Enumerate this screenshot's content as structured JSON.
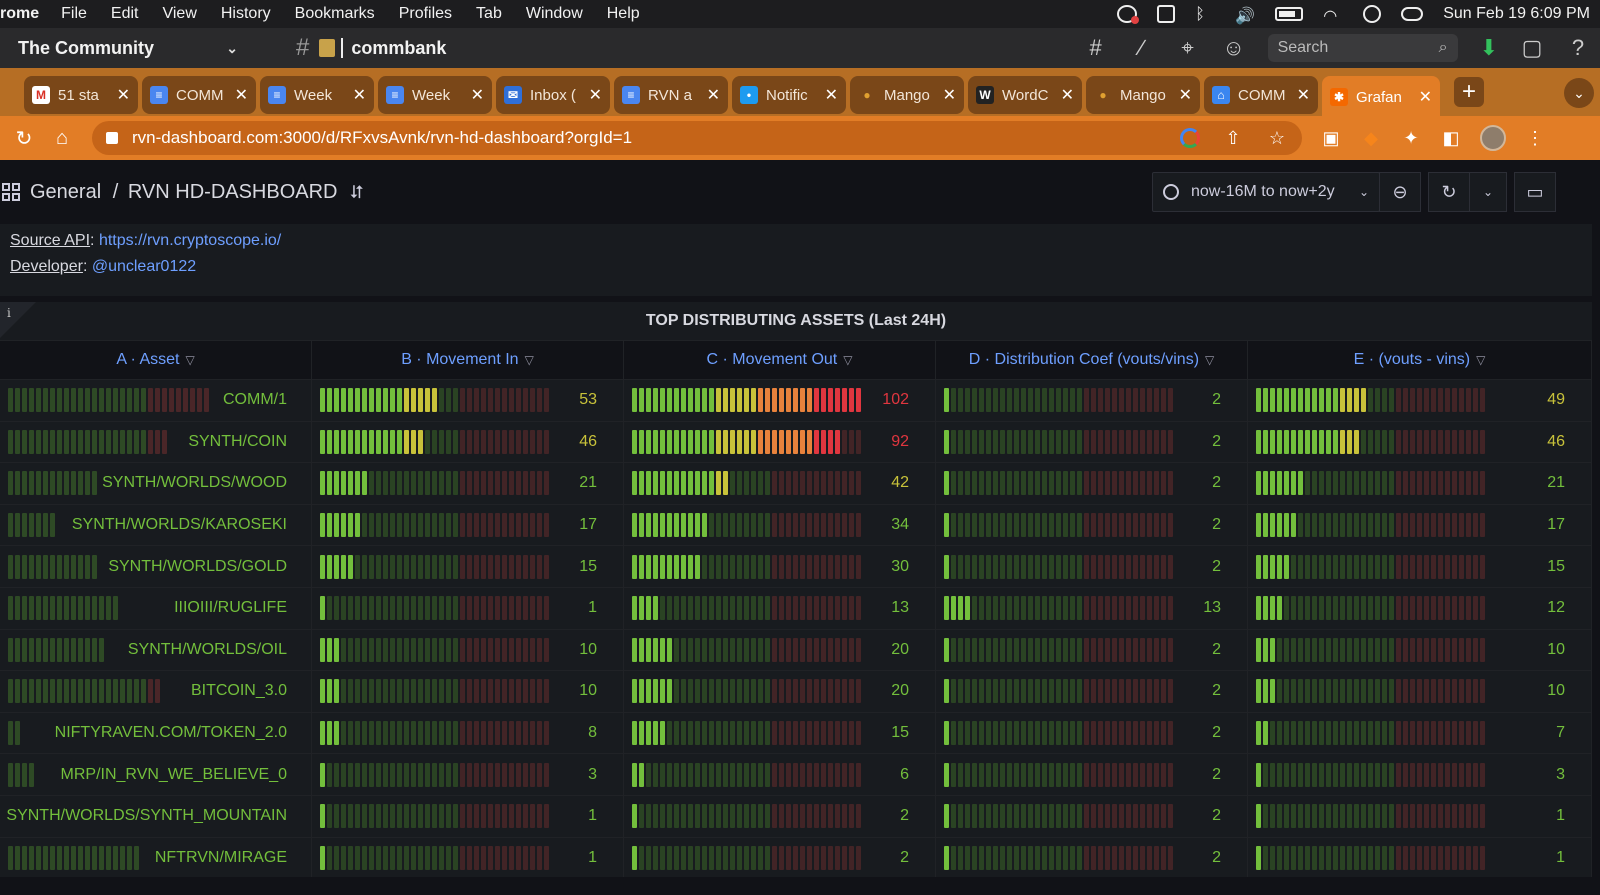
{
  "menubar": {
    "app": "rome",
    "items": [
      "File",
      "Edit",
      "View",
      "History",
      "Bookmarks",
      "Profiles",
      "Tab",
      "Window",
      "Help"
    ],
    "clock": "Sun Feb 19  6:09 PM"
  },
  "profilebar": {
    "profile": "The Community",
    "workspace": "commbank",
    "search_placeholder": "Search"
  },
  "tabs": [
    {
      "title": "51 sta",
      "icon": "gmail-icon",
      "color": "#ffffff",
      "glyph": "M"
    },
    {
      "title": "COMM",
      "icon": "docs-icon",
      "color": "#4a86f0",
      "glyph": "≡"
    },
    {
      "title": "Week",
      "icon": "docs-icon",
      "color": "#4a86f0",
      "glyph": "≡"
    },
    {
      "title": "Week",
      "icon": "docs-icon",
      "color": "#4a86f0",
      "glyph": "≡"
    },
    {
      "title": "Inbox (",
      "icon": "mail-icon",
      "color": "#2f6fd8",
      "glyph": "✉"
    },
    {
      "title": "RVN a",
      "icon": "docs-icon",
      "color": "#4a86f0",
      "glyph": "≡"
    },
    {
      "title": "Notific",
      "icon": "twitter-icon",
      "color": "#1d9bf0",
      "glyph": "•"
    },
    {
      "title": "Mango",
      "icon": "mango-icon",
      "color": "#e0a030",
      "glyph": "●"
    },
    {
      "title": "WordC",
      "icon": "wordcounter-icon",
      "color": "#222222",
      "glyph": "W"
    },
    {
      "title": "Mango",
      "icon": "mango-icon",
      "color": "#e0a030",
      "glyph": "●"
    },
    {
      "title": "COMM",
      "icon": "app-icon",
      "color": "#3a86f0",
      "glyph": "⌂"
    },
    {
      "title": "Grafan",
      "icon": "grafana-icon",
      "color": "#f46800",
      "glyph": "✱",
      "active": true
    }
  ],
  "address": {
    "url": "rvn-dashboard.com:3000/d/RFxvsAvnk/rvn-hd-dashboard?orgId=1"
  },
  "grafana": {
    "folder": "General",
    "sep": "/",
    "dashboard": "RVN HD-DASHBOARD",
    "time_range": "now-16M to now+2y"
  },
  "text_panel": {
    "source_label": "Source API",
    "source_value": "https://rvn.cryptoscope.io/",
    "dev_label": "Developer",
    "dev_value": "@unclear0122"
  },
  "table": {
    "title": "TOP DISTRIBUTING ASSETS (Last 24H)",
    "columns": [
      "A · Asset",
      "B · Movement In",
      "C · Movement Out",
      "D · Distribution Coef (vouts/vins)",
      "E · (vouts - vins)"
    ],
    "rows": [
      {
        "asset": "COMM/1",
        "in": 53,
        "out": 102,
        "coef": 2,
        "diff": 49
      },
      {
        "asset": "SYNTH/COIN",
        "in": 46,
        "out": 92,
        "coef": 2,
        "diff": 46
      },
      {
        "asset": "SYNTH/WORLDS/WOOD",
        "in": 21,
        "out": 42,
        "coef": 2,
        "diff": 21
      },
      {
        "asset": "SYNTH/WORLDS/KAROSEKI",
        "in": 17,
        "out": 34,
        "coef": 2,
        "diff": 17
      },
      {
        "asset": "SYNTH/WORLDS/GOLD",
        "in": 15,
        "out": 30,
        "coef": 2,
        "diff": 15
      },
      {
        "asset": "IIIOIII/RUGLIFE",
        "in": 1,
        "out": 13,
        "coef": 13,
        "diff": 12
      },
      {
        "asset": "SYNTH/WORLDS/OIL",
        "in": 10,
        "out": 20,
        "coef": 2,
        "diff": 10
      },
      {
        "asset": "BITCOIN_3.0",
        "in": 10,
        "out": 20,
        "coef": 2,
        "diff": 10
      },
      {
        "asset": "NIFTYRAVEN.COM/TOKEN_2.0",
        "in": 8,
        "out": 15,
        "coef": 2,
        "diff": 7
      },
      {
        "asset": "MRP/IN_RVN_WE_BELIEVE_0",
        "in": 3,
        "out": 6,
        "coef": 2,
        "diff": 3
      },
      {
        "asset": "SYNTH/WORLDS/SYNTH_MOUNTAIN",
        "in": 1,
        "out": 2,
        "coef": 2,
        "diff": 1
      },
      {
        "asset": "NFTRVN/MIRAGE",
        "in": 1,
        "out": 2,
        "coef": 2,
        "diff": 1
      }
    ],
    "gauge_max": {
      "in": 102,
      "out": 102,
      "coef": 102,
      "diff": 102
    },
    "asset_gauge_fill": [
      0,
      0,
      0,
      0,
      0,
      0,
      0,
      0,
      0,
      0,
      0,
      0
    ],
    "colors": {
      "green": "#73bf3c",
      "yellow": "#c8c23a",
      "orange": "#e8823c",
      "red": "#e0363f",
      "dim_green": "#2e4a25",
      "dim_red": "#4a2628"
    }
  }
}
